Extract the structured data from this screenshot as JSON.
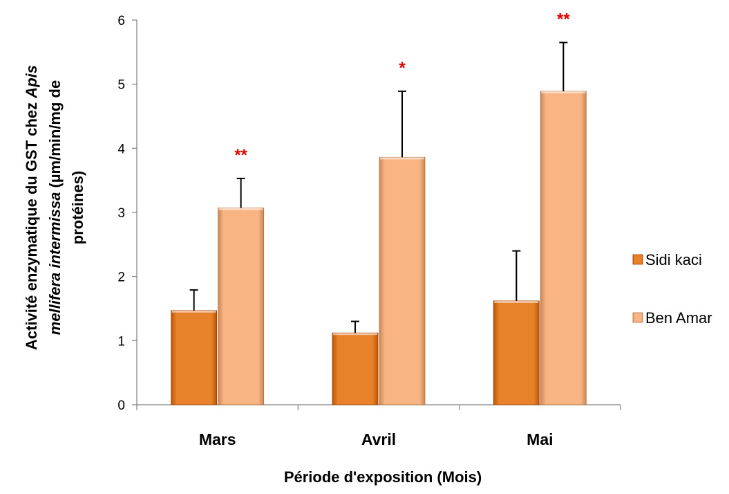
{
  "chart_data": {
    "type": "bar",
    "categories": [
      "Mars",
      "Avril",
      "Mai"
    ],
    "series": [
      {
        "name": "Sidi kaci",
        "values": [
          1.47,
          1.12,
          1.62
        ],
        "errors": [
          0.32,
          0.18,
          0.78
        ],
        "color": "#e8822a",
        "significance": [
          "",
          "",
          ""
        ]
      },
      {
        "name": "Ben Amar",
        "values": [
          3.07,
          3.86,
          4.89
        ],
        "errors": [
          0.46,
          1.03,
          0.76
        ],
        "color": "#f8b583",
        "significance": [
          "**",
          "*",
          "**"
        ]
      }
    ],
    "xlabel": "Période d'exposition (Mois)",
    "ylabel_lines": [
      [
        {
          "t": "Activité enzymatique du GST chez ",
          "i": false
        },
        {
          "t": "Apis",
          "i": true
        }
      ],
      [
        {
          "t": "mellifera intermissa",
          "i": true
        },
        {
          "t": " (µm/min/mg de",
          "i": false
        }
      ],
      [
        {
          "t": "protéines)",
          "i": false
        }
      ]
    ],
    "ylim": [
      0,
      6
    ],
    "yticks": [
      "0",
      "1",
      "2",
      "3",
      "4",
      "5",
      "6"
    ],
    "grid": false,
    "legend_position": "right",
    "significance_color": "#e00000"
  }
}
